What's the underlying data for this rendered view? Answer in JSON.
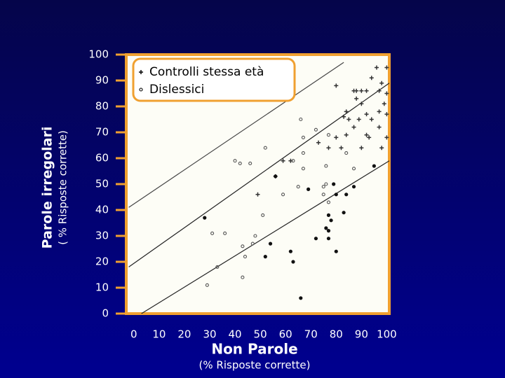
{
  "chart_data": {
    "type": "scatter",
    "y_label": "Parole irregolari",
    "y_sublabel": "( % Risposte corrette)",
    "x_label": "Non Parole",
    "x_sublabel": "(% Risposte corrette)",
    "xlim": [
      -3,
      101
    ],
    "ylim": [
      0,
      100
    ],
    "xticks": [
      0,
      10,
      20,
      30,
      40,
      50,
      60,
      70,
      80,
      90,
      100
    ],
    "yticks": [
      0,
      10,
      20,
      30,
      40,
      50,
      60,
      70,
      80,
      90,
      100
    ],
    "legend": "upper left",
    "series": [
      {
        "name": "Controlli stessa età",
        "marker": "cross",
        "color": "#333333",
        "x": [
          96,
          100,
          80,
          87,
          88,
          90,
          92,
          97,
          94,
          98,
          100,
          99,
          97,
          100,
          88,
          90,
          84,
          83,
          85,
          87,
          89,
          92,
          94,
          97,
          100,
          92,
          84,
          90,
          82,
          73,
          77,
          62,
          59,
          56,
          49,
          80,
          93,
          98
        ],
        "values": [
          95,
          95,
          88,
          86,
          86,
          86,
          86,
          86,
          91,
          89,
          85,
          81,
          78,
          77,
          83,
          81,
          78,
          76,
          75,
          72,
          75,
          77,
          75,
          72,
          68,
          69,
          69,
          64,
          64,
          66,
          64,
          59,
          59,
          53,
          46,
          68,
          68,
          64
        ]
      },
      {
        "name": "Dislessici",
        "marker": "circle",
        "color": "#555555",
        "x": [
          66,
          72,
          77,
          67,
          52,
          67,
          40,
          42,
          46,
          63,
          67,
          76,
          84,
          76,
          75,
          65,
          59,
          75,
          77,
          31,
          36,
          48,
          47,
          43,
          33,
          44,
          29,
          43,
          51,
          87
        ],
        "values": [
          75,
          71,
          69,
          68,
          64,
          62,
          59,
          58,
          58,
          59,
          56,
          57,
          62,
          50,
          49,
          49,
          46,
          46,
          43,
          31,
          31,
          30,
          27,
          26,
          18,
          22,
          11,
          14,
          38,
          56
        ]
      },
      {
        "marker": "dot",
        "color": "#111111",
        "x": [
          28,
          54,
          52,
          62,
          63,
          66,
          72,
          77,
          76,
          77,
          78,
          80,
          83,
          84,
          80,
          87,
          95,
          56,
          69,
          79,
          77
        ],
        "values": [
          37,
          27,
          22,
          24,
          20,
          6,
          29,
          29,
          33,
          32,
          36,
          24,
          39,
          46,
          46,
          49,
          57,
          53,
          48,
          50,
          38
        ]
      }
    ],
    "lines": [
      {
        "color": "#444444",
        "x": [
          -2,
          83
        ],
        "y": [
          41,
          97
        ]
      },
      {
        "color": "#222222",
        "x": [
          -2,
          101
        ],
        "y": [
          18,
          89
        ]
      },
      {
        "color": "#222222",
        "x": [
          3,
          101
        ],
        "y": [
          0,
          59
        ]
      }
    ]
  }
}
